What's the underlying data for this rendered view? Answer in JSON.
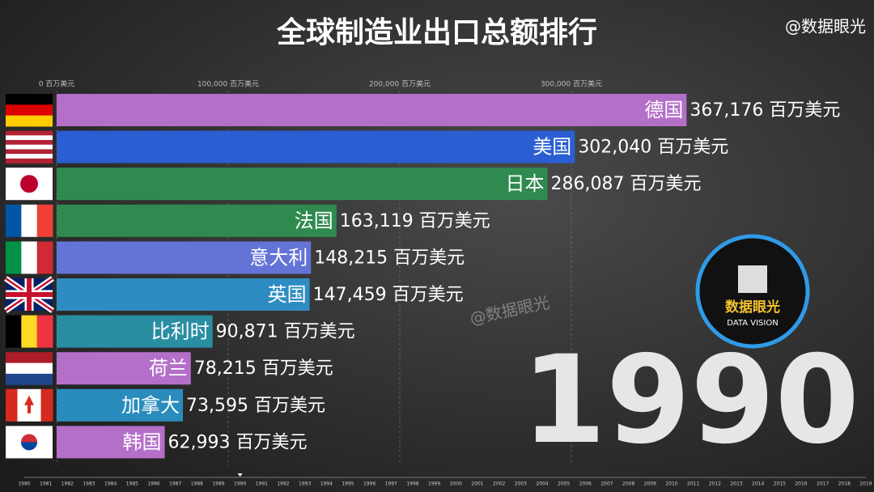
{
  "chart_data": {
    "type": "hbar",
    "title": "全球制造业出口总额排行",
    "watermark": "@数据眼光",
    "logo": {
      "name": "数据眼光",
      "subtitle": "DATA VISION"
    },
    "categories": [
      "德国",
      "美国",
      "日本",
      "法国",
      "意大利",
      "英国",
      "比利时",
      "荷兰",
      "加拿大",
      "韩国"
    ],
    "values": [
      367176,
      302040,
      286087,
      163119,
      148215,
      147459,
      90871,
      78215,
      73595,
      62993
    ],
    "value_labels": [
      "367,176 百万美元",
      "302,040 百万美元",
      "286,087 百万美元",
      "163,119 百万美元",
      "148,215 百万美元",
      "147,459 百万美元",
      "90,871 百万美元",
      "78,215 百万美元",
      "73,595 百万美元",
      "62,993 百万美元"
    ],
    "colors": [
      "#b46fc9",
      "#2a5ed2",
      "#2f8a4f",
      "#2f8a4f",
      "#6474d6",
      "#2e8cc2",
      "#2a8ea3",
      "#b46fc9",
      "#2a8cbc",
      "#b46fc9"
    ],
    "xlim": [
      0,
      400000
    ],
    "xticks": [
      {
        "value": 0,
        "label": "0 百万美元"
      },
      {
        "value": 100000,
        "label": "100,000 百万美元"
      },
      {
        "value": 200000,
        "label": "200,000 百万美元"
      },
      {
        "value": 300000,
        "label": "300,000 百万美元"
      }
    ],
    "grid": true,
    "year": 1990,
    "timeline": [
      1980,
      1981,
      1982,
      1983,
      1984,
      1985,
      1986,
      1987,
      1988,
      1989,
      1990,
      1991,
      1992,
      1993,
      1994,
      1995,
      1996,
      1997,
      1998,
      1999,
      2000,
      2001,
      2002,
      2003,
      2004,
      2005,
      2006,
      2007,
      2008,
      2009,
      2010,
      2011,
      2012,
      2013,
      2014,
      2015,
      2016,
      2017,
      2018,
      2019
    ]
  }
}
